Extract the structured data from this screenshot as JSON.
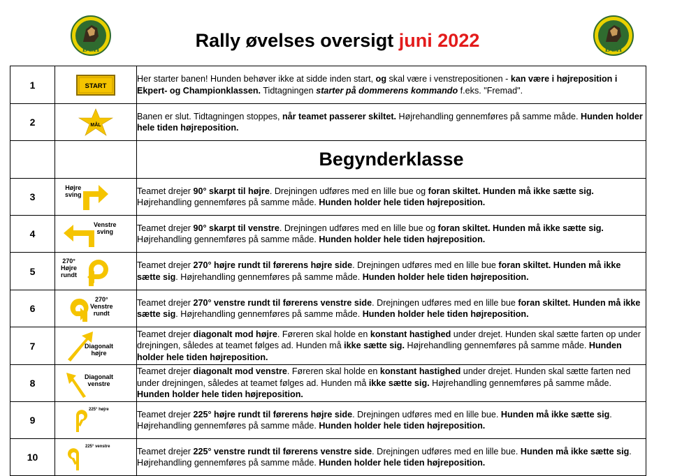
{
  "header": {
    "title_main": "Rally øvelses oversigt ",
    "title_date": "juni 2022",
    "logo_text": "DCH"
  },
  "section": {
    "title": "Begynderklasse"
  },
  "signs": {
    "start": "START",
    "mal": "MÅL",
    "hojre_sving": [
      "Højre",
      "sving"
    ],
    "venstre_sving": [
      "Venstre",
      "sving"
    ],
    "r270_hojre": [
      "270°",
      "Højre",
      "rundt"
    ],
    "r270_venstre": [
      "270°",
      "Venstre",
      "rundt"
    ],
    "diag_hojre": [
      "Diagonalt",
      "højre"
    ],
    "diag_venstre": [
      "Diagonalt",
      "venstre"
    ],
    "r225_hojre": "225° højre",
    "r225_venstre": "225° venstre"
  },
  "rows": [
    {
      "num": "1",
      "desc": [
        {
          "t": "Her starter banen! Hunden behøver ikke at sidde inden start, "
        },
        {
          "t": "og",
          "b": true
        },
        {
          "t": " skal være i venstrepositionen - "
        },
        {
          "t": "kan være i højreposition i Ekpert- og Championklassen.",
          "b": true
        },
        {
          "t": " Tidtagningen "
        },
        {
          "t": "starter på dommerens kommando",
          "b": true,
          "i": true
        },
        {
          "t": " f.eks. \"Fremad\"."
        }
      ]
    },
    {
      "num": "2",
      "desc": [
        {
          "t": "Banen er slut. Tidtagningen stoppes,  "
        },
        {
          "t": "når teamet passerer skiltet.",
          "b": true
        },
        {
          "t": "  Højrehandling gennemføres på samme måde. "
        },
        {
          "t": "Hunden holder hele tiden højreposition.",
          "b": true
        }
      ]
    },
    {
      "num": "3",
      "desc": [
        {
          "t": " Teamet drejer "
        },
        {
          "t": "90° skarpt til højre",
          "b": true
        },
        {
          "t": ". Drejningen udføres med en lille bue og "
        },
        {
          "t": "foran skiltet. Hunden må ikke sætte sig.",
          "b": true
        },
        {
          "t": " Højrehandling gennemføres på samme måde. "
        },
        {
          "t": "Hunden holder hele tiden højreposition.",
          "b": true
        }
      ]
    },
    {
      "num": "4",
      "desc": [
        {
          "t": " Teamet drejer "
        },
        {
          "t": "90° skarpt til venstre",
          "b": true
        },
        {
          "t": ". Drejningen udføres med en lille bue og "
        },
        {
          "t": "foran skiltet. Hunden må ikke sætte sig.",
          "b": true
        },
        {
          "t": " Højrehandling gennemføres på samme måde. "
        },
        {
          "t": "Hunden holder hele tiden højreposition.",
          "b": true
        }
      ]
    },
    {
      "num": "5",
      "desc": [
        {
          "t": "Teamet drejer "
        },
        {
          "t": "270° højre rundt til førerens højre side",
          "b": true
        },
        {
          "t": ". Drejningen udføres med en lille bue "
        },
        {
          "t": "foran skiltet. Hunden må ikke sætte sig",
          "b": true
        },
        {
          "t": ". Højrehandling gennemføres på samme måde. "
        },
        {
          "t": "Hunden holder hele tiden højreposition.",
          "b": true
        }
      ]
    },
    {
      "num": "6",
      "desc": [
        {
          "t": "Teamet drejer "
        },
        {
          "t": "270° venstre rundt til førerens venstre side",
          "b": true
        },
        {
          "t": ". Drejningen udføres med en lille bue "
        },
        {
          "t": "foran skiltet. Hunden må ikke sætte sig",
          "b": true
        },
        {
          "t": ". Højrehandling gennemføres på samme måde. "
        },
        {
          "t": "Hunden holder hele tiden højreposition.",
          "b": true
        }
      ]
    },
    {
      "num": "7",
      "desc": [
        {
          "t": "Teamet drejer "
        },
        {
          "t": "diagonalt mod højre",
          "b": true
        },
        {
          "t": ". Føreren skal holde en "
        },
        {
          "t": "konstant hastighed",
          "b": true
        },
        {
          "t": " under drejet. Hunden skal sætte farten op under drejningen, således at teamet følges ad. Hunden må "
        },
        {
          "t": "ikke sætte sig.",
          "b": true
        },
        {
          "t": " Højrehandling gennemføres på samme måde. "
        },
        {
          "t": "Hunden holder hele tiden højreposition.",
          "b": true
        }
      ]
    },
    {
      "num": "8",
      "desc": [
        {
          "t": "Teamet drejer "
        },
        {
          "t": "diagonalt mod venstre",
          "b": true
        },
        {
          "t": ". Føreren skal holde en "
        },
        {
          "t": "konstant hastighed",
          "b": true
        },
        {
          "t": " under drejet. Hunden skal sætte farten ned under drejningen, således at teamet følges ad. Hunden må "
        },
        {
          "t": "ikke sætte sig.",
          "b": true
        },
        {
          "t": " Højrehandling gennemføres på samme måde. "
        },
        {
          "t": "Hunden holder hele tiden højreposition.",
          "b": true
        }
      ]
    },
    {
      "num": "9",
      "desc": [
        {
          "t": "Teamet drejer "
        },
        {
          "t": "225° højre rundt til førerens højre side",
          "b": true
        },
        {
          "t": ". Drejningen udføres med en lille bue. "
        },
        {
          "t": "Hunden må ikke sætte sig",
          "b": true
        },
        {
          "t": ". Højrehandling gennemføres på samme måde. "
        },
        {
          "t": "Hunden holder hele tiden højreposition.",
          "b": true
        }
      ]
    },
    {
      "num": "10",
      "desc": [
        {
          "t": "Teamet drejer "
        },
        {
          "t": "225° venstre rundt til førerens venstre side",
          "b": true
        },
        {
          "t": ". Drejningen udføres med en lille bue. "
        },
        {
          "t": "Hunden må ikke sætte sig",
          "b": true
        },
        {
          "t": ". Højrehandling gennemføres på samme måde. "
        },
        {
          "t": "Hunden holder hele tiden højreposition.",
          "b": true
        }
      ]
    }
  ],
  "colors": {
    "sign_yellow": "#f5c400",
    "title_red": "#e31b1b",
    "logo_green": "#2f6b2f"
  }
}
